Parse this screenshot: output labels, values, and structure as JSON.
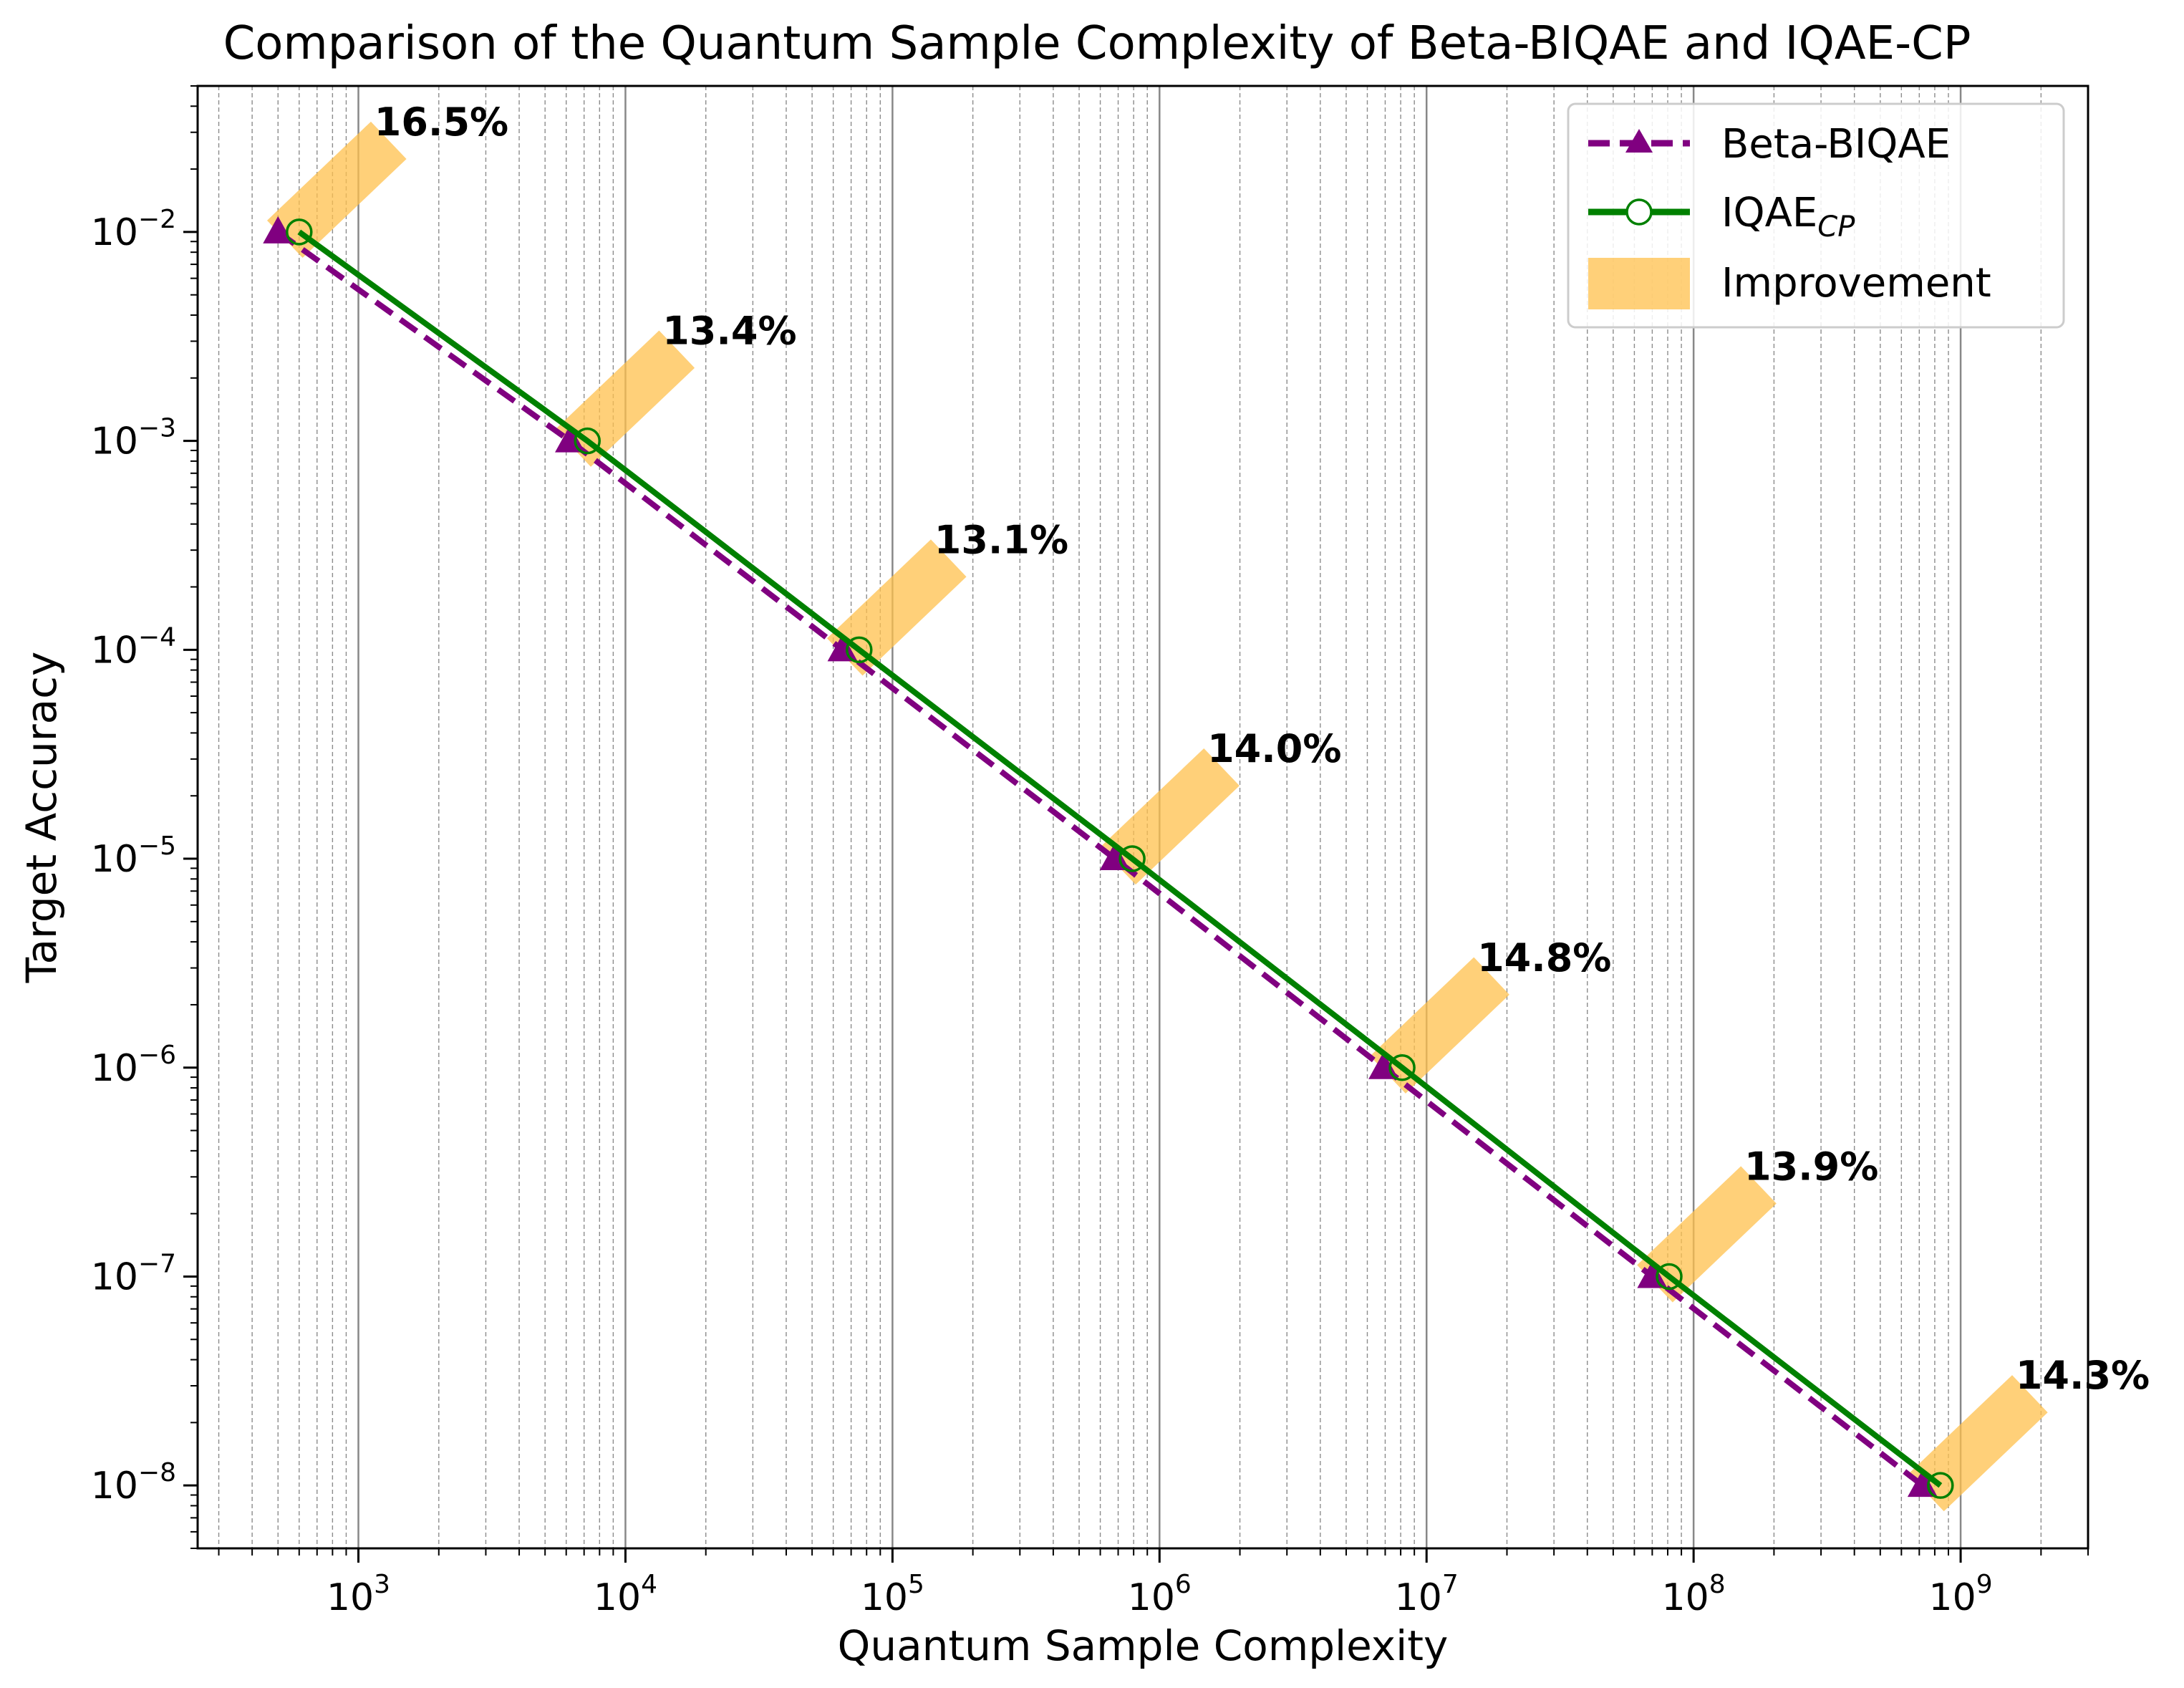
{
  "chart_data": {
    "type": "line",
    "title": "Comparison of the Quantum Sample Complexity of Beta-BIQAE and IQAE-CP",
    "xlabel": "Quantum Sample Complexity",
    "ylabel": "Target Accuracy",
    "xscale": "log",
    "yscale": "log",
    "xlim": [
      250,
      3000000000
    ],
    "ylim": [
      5e-09,
      0.05
    ],
    "grid": "major-and-minor-vertical",
    "legend_position": "top-right",
    "x_ticks": [
      {
        "base": "10",
        "exp": "3",
        "value": 1000
      },
      {
        "base": "10",
        "exp": "4",
        "value": 10000
      },
      {
        "base": "10",
        "exp": "5",
        "value": 100000
      },
      {
        "base": "10",
        "exp": "6",
        "value": 1000000
      },
      {
        "base": "10",
        "exp": "7",
        "value": 10000000
      },
      {
        "base": "10",
        "exp": "8",
        "value": 100000000
      },
      {
        "base": "10",
        "exp": "9",
        "value": 1000000000
      }
    ],
    "y_ticks": [
      {
        "base": "10",
        "exp": "−2",
        "value": 0.01
      },
      {
        "base": "10",
        "exp": "−3",
        "value": 0.001
      },
      {
        "base": "10",
        "exp": "−4",
        "value": 0.0001
      },
      {
        "base": "10",
        "exp": "−5",
        "value": 1e-05
      },
      {
        "base": "10",
        "exp": "−6",
        "value": 1e-06
      },
      {
        "base": "10",
        "exp": "−7",
        "value": 1e-07
      },
      {
        "base": "10",
        "exp": "−8",
        "value": 1e-08
      }
    ],
    "series": [
      {
        "name": "Beta-BIQAE",
        "color": "#800080",
        "style": "dashed",
        "marker": "triangle",
        "x": [
          500,
          6200,
          65000,
          680000,
          6900000,
          70000000,
          720000000
        ],
        "y": [
          0.01,
          0.001,
          0.0001,
          1e-05,
          1e-06,
          1e-07,
          1e-08
        ]
      },
      {
        "name": "IQAE",
        "name_subscript": "CP",
        "color": "#008000",
        "style": "solid",
        "marker": "open-circle",
        "x": [
          600,
          7200,
          75000,
          790000,
          8100000,
          81000000,
          840000000
        ],
        "y": [
          0.01,
          0.001,
          0.0001,
          1e-05,
          1e-06,
          1e-07,
          1e-08
        ]
      }
    ],
    "improvement": {
      "name": "Improvement",
      "color": "#FFC04C",
      "labels": [
        "16.5%",
        "13.4%",
        "13.1%",
        "14.0%",
        "14.8%",
        "13.9%",
        "14.3%"
      ]
    }
  }
}
